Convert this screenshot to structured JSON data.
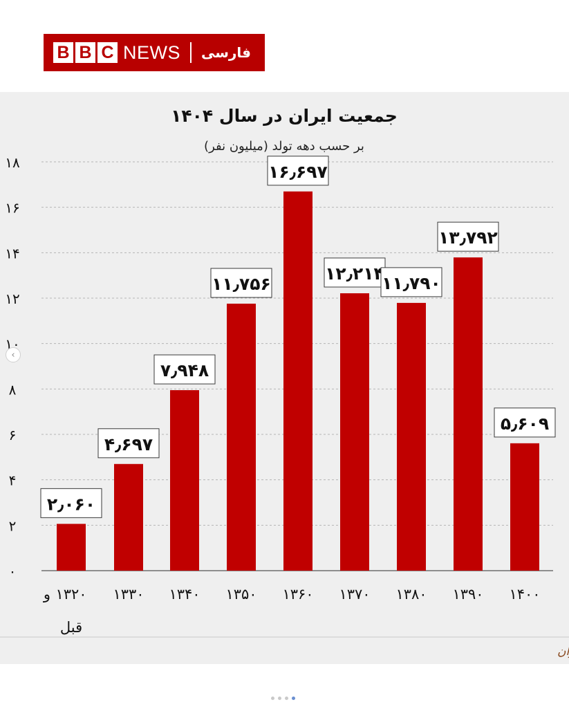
{
  "brand": {
    "blocks": [
      "B",
      "B",
      "C"
    ],
    "news": "NEWS",
    "service": "فارسی"
  },
  "colors": {
    "bar": "#c00000",
    "brand": "#b80000",
    "source": "#8a4a20"
  },
  "chart_data": {
    "type": "bar",
    "title": "جمعیت ایران در سال ۱۴۰۴",
    "subtitle": "بر حسب دهه تولد (میلیون نفر)",
    "categories": [
      "۱۳۲۰",
      "۱۳۳۰",
      "۱۳۴۰",
      "۱۳۵۰",
      "۱۳۶۰",
      "۱۳۷۰",
      "۱۳۸۰",
      "۱۳۹۰",
      "۱۴۰۰"
    ],
    "first_category_suffix": [
      "و",
      "قبل"
    ],
    "values": [
      2.06,
      4.697,
      7.948,
      11.756,
      16.697,
      12.214,
      11.79,
      13.792,
      5.609
    ],
    "value_labels": [
      "۲٫۰۶۰",
      "۴٫۶۹۷",
      "۷٫۹۴۸",
      "۱۱٫۷۵۶",
      "۱۶٫۶۹۷",
      "۱۲٫۲۱۴",
      "۱۱٫۷۹۰",
      "۱۳٫۷۹۲",
      "۵٫۶۰۹"
    ],
    "y_ticks": [
      0,
      2,
      4,
      6,
      8,
      10,
      12,
      14,
      16,
      18
    ],
    "y_tick_labels": [
      "۰",
      "۲",
      "۴",
      "۶",
      "۸",
      "۱۰",
      "۱۲",
      "۱۴",
      "۱۶",
      "۱۸"
    ],
    "ylim": [
      0,
      18
    ],
    "grid": true,
    "source": "منبع: مرکز آمار ایران"
  }
}
